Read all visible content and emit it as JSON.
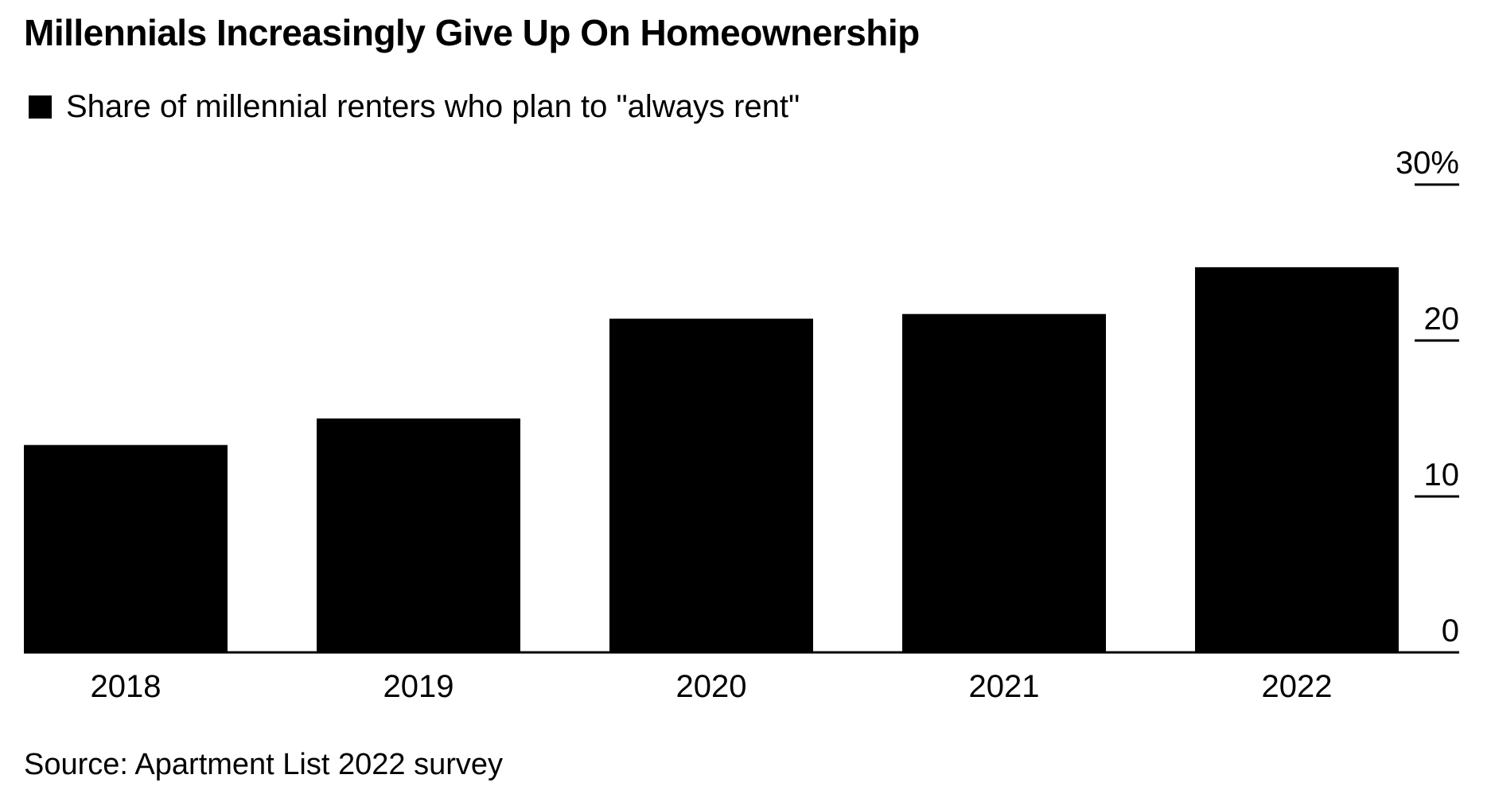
{
  "title": "Millennials Increasingly Give Up On Homeownership",
  "source": "Source: Apartment List 2022 survey",
  "chart_data": {
    "type": "bar",
    "categories": [
      "2018",
      "2019",
      "2020",
      "2021",
      "2022"
    ],
    "series": [
      {
        "name": "Share of millennial renters who plan to \"always rent\"",
        "values": [
          13.3,
          15.0,
          21.4,
          21.7,
          24.7
        ],
        "color": "#000000"
      }
    ],
    "ylim": [
      0,
      30
    ],
    "yticks": [
      0,
      10,
      20,
      30
    ],
    "ytick_labels": [
      "0",
      "10",
      "20",
      "30%"
    ],
    "y_axis_position": "right",
    "grid": false,
    "legend_position": "top-left",
    "xlabel": "",
    "ylabel": ""
  }
}
